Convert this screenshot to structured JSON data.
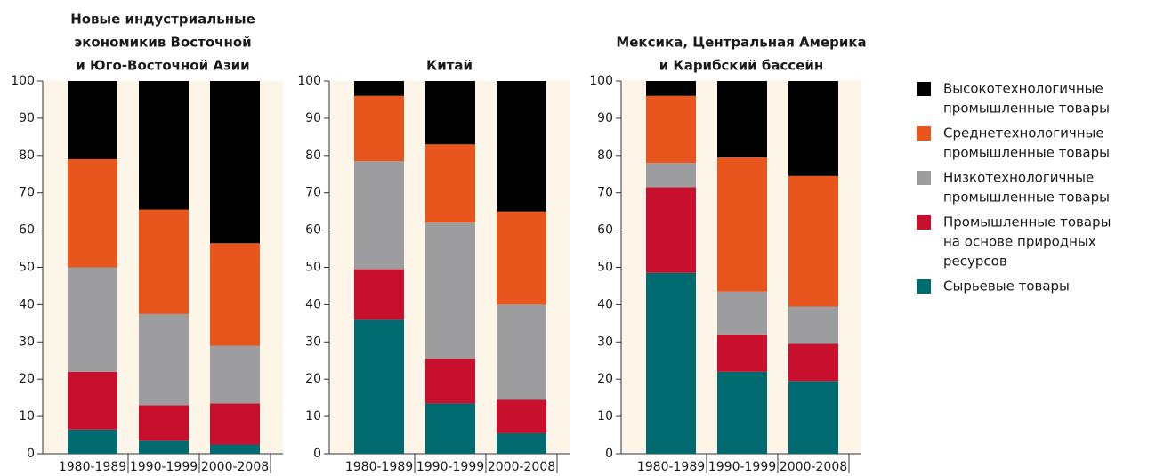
{
  "legend": [
    {
      "name": [
        "Высокотехнологичные",
        "промышленные товары"
      ],
      "color": "#000000"
    },
    {
      "name": [
        "Среднетехнологичные",
        "промышленные товары"
      ],
      "color": "#e8561e"
    },
    {
      "name": [
        "Низкотехнологичные",
        "промышленные товары"
      ],
      "color": "#9d9d9f"
    },
    {
      "name": [
        "Промышленные товары",
        "на основе природных",
        "ресурсов"
      ],
      "color": "#c8102e"
    },
    {
      "name": [
        "Сырьевые товары"
      ],
      "color": "#006a71"
    }
  ],
  "chart_data": [
    {
      "type": "stacked_bar",
      "title": [
        "Новые индустриальные",
        "экономикив Восточной",
        "и Юго-Восточной Азии"
      ],
      "categories": [
        "1980-1989",
        "1990-1999",
        "2000-2008"
      ],
      "ylim": [
        0,
        100
      ],
      "yticks": [
        0,
        10,
        20,
        30,
        40,
        50,
        60,
        70,
        80,
        90,
        100
      ],
      "series": [
        {
          "legend": 4,
          "values": [
            6.5,
            3.5,
            2.5
          ]
        },
        {
          "legend": 3,
          "values": [
            15.5,
            9.5,
            11
          ]
        },
        {
          "legend": 2,
          "values": [
            28,
            24.5,
            15.5
          ]
        },
        {
          "legend": 1,
          "values": [
            29,
            28,
            27.5
          ]
        },
        {
          "legend": 0,
          "values": [
            21,
            34.5,
            43.5
          ]
        }
      ]
    },
    {
      "type": "stacked_bar",
      "title": [
        "Китай"
      ],
      "categories": [
        "1980-1989",
        "1990-1999",
        "2000-2008"
      ],
      "ylim": [
        0,
        100
      ],
      "yticks": [
        0,
        10,
        20,
        30,
        40,
        50,
        60,
        70,
        80,
        90,
        100
      ],
      "series": [
        {
          "legend": 4,
          "values": [
            36,
            13.5,
            5.5
          ]
        },
        {
          "legend": 3,
          "values": [
            13.5,
            12,
            9
          ]
        },
        {
          "legend": 2,
          "values": [
            29,
            36.5,
            25.5
          ]
        },
        {
          "legend": 1,
          "values": [
            17.5,
            21,
            25
          ]
        },
        {
          "legend": 0,
          "values": [
            4,
            17,
            35
          ]
        }
      ]
    },
    {
      "type": "stacked_bar",
      "title": [
        "Мексика, Центральная Америка",
        "и Карибский бассейн"
      ],
      "categories": [
        "1980-1989",
        "1990-1999",
        "2000-2008"
      ],
      "ylim": [
        0,
        100
      ],
      "yticks": [
        0,
        10,
        20,
        30,
        40,
        50,
        60,
        70,
        80,
        90,
        100
      ],
      "series": [
        {
          "legend": 4,
          "values": [
            48.5,
            22,
            19.5
          ]
        },
        {
          "legend": 3,
          "values": [
            23,
            10,
            10
          ]
        },
        {
          "legend": 2,
          "values": [
            6.5,
            11.5,
            10
          ]
        },
        {
          "legend": 1,
          "values": [
            18,
            36,
            35
          ]
        },
        {
          "legend": 0,
          "values": [
            4,
            20.5,
            25.5
          ]
        }
      ]
    }
  ]
}
